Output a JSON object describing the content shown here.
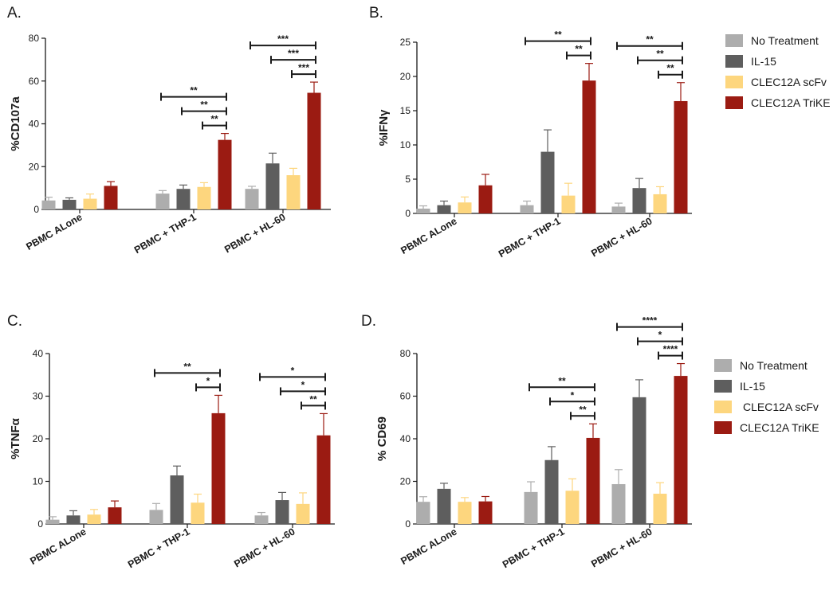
{
  "legend": {
    "entries": [
      {
        "name": "No Treatment",
        "color": "#adadad"
      },
      {
        "name": "IL-15",
        "color": "#5e5e5e"
      },
      {
        "name": "CLEC12A scFv",
        "color": "#fdd67e"
      },
      {
        "name": "CLEC12A TriKE",
        "color": "#9b1b12"
      }
    ]
  },
  "chart_data": [
    {
      "panel": "A.",
      "type": "bar",
      "ylabel": "%CD107a",
      "ylim": [
        0,
        80
      ],
      "yticks": [
        0,
        20,
        40,
        60,
        80
      ],
      "categories": [
        "PBMC ALone",
        "PBMC + THP-1",
        "PBMC + HL-60"
      ],
      "series": [
        {
          "name": "No Treatment",
          "color": "#adadad",
          "values": [
            4.2,
            7.4,
            9.6
          ],
          "errors": [
            1.5,
            1.4,
            1.2
          ]
        },
        {
          "name": "IL-15",
          "color": "#5e5e5e",
          "values": [
            4.5,
            9.6,
            21.5
          ],
          "errors": [
            0.9,
            1.8,
            4.8
          ]
        },
        {
          "name": "CLEC12A scFv",
          "color": "#fdd67e",
          "values": [
            5.0,
            10.5,
            16.0
          ],
          "errors": [
            2.2,
            2.0,
            3.2
          ]
        },
        {
          "name": "CLEC12A TriKE",
          "color": "#9b1b12",
          "values": [
            11.0,
            32.5,
            54.5
          ],
          "errors": [
            2.0,
            3.0,
            5.0
          ]
        }
      ],
      "significance": [
        {
          "category": 1,
          "from": 0,
          "to": 3,
          "label": "**"
        },
        {
          "category": 1,
          "from": 1,
          "to": 3,
          "label": "**"
        },
        {
          "category": 1,
          "from": 2,
          "to": 3,
          "label": "**"
        },
        {
          "category": 2,
          "from": 0,
          "to": 3,
          "label": "***"
        },
        {
          "category": 2,
          "from": 1,
          "to": 3,
          "label": "***"
        },
        {
          "category": 2,
          "from": 2,
          "to": 3,
          "label": "***"
        }
      ]
    },
    {
      "panel": "B.",
      "type": "bar",
      "ylabel": "%IFNγ",
      "ylim": [
        0,
        25
      ],
      "yticks": [
        0,
        5,
        10,
        15,
        20,
        25
      ],
      "categories": [
        "PBMC ALone",
        "PBMC + THP-1",
        "PBMC + HL-60"
      ],
      "series": [
        {
          "name": "No Treatment",
          "color": "#adadad",
          "values": [
            0.7,
            1.2,
            1.0
          ],
          "errors": [
            0.4,
            0.6,
            0.5
          ]
        },
        {
          "name": "IL-15",
          "color": "#5e5e5e",
          "values": [
            1.2,
            9.0,
            3.7
          ],
          "errors": [
            0.6,
            3.2,
            1.4
          ]
        },
        {
          "name": "CLEC12A scFv",
          "color": "#fdd67e",
          "values": [
            1.6,
            2.6,
            2.8
          ],
          "errors": [
            0.8,
            1.8,
            1.1
          ]
        },
        {
          "name": "CLEC12A TriKE",
          "color": "#9b1b12",
          "values": [
            4.1,
            19.4,
            16.4
          ],
          "errors": [
            1.6,
            2.5,
            2.7
          ]
        }
      ],
      "significance": [
        {
          "category": 1,
          "from": 0,
          "to": 3,
          "label": "**"
        },
        {
          "category": 1,
          "from": 2,
          "to": 3,
          "label": "**"
        },
        {
          "category": 2,
          "from": 0,
          "to": 3,
          "label": "**"
        },
        {
          "category": 2,
          "from": 1,
          "to": 3,
          "label": "**"
        },
        {
          "category": 2,
          "from": 2,
          "to": 3,
          "label": "**"
        }
      ]
    },
    {
      "panel": "C.",
      "type": "bar",
      "ylabel": "%TNFα",
      "ylim": [
        0,
        40
      ],
      "yticks": [
        0,
        10,
        20,
        30,
        40
      ],
      "categories": [
        "PBMC ALone",
        "PBMC + THP-1",
        "PBMC + HL-60"
      ],
      "series": [
        {
          "name": "No Treatment",
          "color": "#adadad",
          "values": [
            1.0,
            3.3,
            2.0
          ],
          "errors": [
            0.7,
            1.5,
            0.7
          ]
        },
        {
          "name": "IL-15",
          "color": "#5e5e5e",
          "values": [
            2.0,
            11.4,
            5.6
          ],
          "errors": [
            1.1,
            2.2,
            1.8
          ]
        },
        {
          "name": "CLEC12A scFv",
          "color": "#fdd67e",
          "values": [
            2.2,
            5.0,
            4.7
          ],
          "errors": [
            1.2,
            2.0,
            2.6
          ]
        },
        {
          "name": "CLEC12A TriKE",
          "color": "#9b1b12",
          "values": [
            3.9,
            26.0,
            20.8
          ],
          "errors": [
            1.5,
            4.2,
            5.1
          ]
        }
      ],
      "significance": [
        {
          "category": 1,
          "from": 0,
          "to": 3,
          "label": "**"
        },
        {
          "category": 1,
          "from": 2,
          "to": 3,
          "label": "*"
        },
        {
          "category": 2,
          "from": 0,
          "to": 3,
          "label": "*"
        },
        {
          "category": 2,
          "from": 1,
          "to": 3,
          "label": "*"
        },
        {
          "category": 2,
          "from": 2,
          "to": 3,
          "label": "**"
        }
      ]
    },
    {
      "panel": "D.",
      "type": "bar",
      "ylabel": "% CD69",
      "ylim": [
        0,
        80
      ],
      "yticks": [
        0,
        20,
        40,
        60,
        80
      ],
      "categories": [
        "PBMC ALone",
        "PBMC + THP-1",
        "PBMC + HL-60"
      ],
      "series": [
        {
          "name": "No Treatment",
          "color": "#adadad",
          "values": [
            10.4,
            15.0,
            18.7
          ],
          "errors": [
            2.4,
            4.8,
            6.8
          ]
        },
        {
          "name": "IL-15",
          "color": "#5e5e5e",
          "values": [
            16.5,
            30.0,
            59.5
          ],
          "errors": [
            2.6,
            6.3,
            8.2
          ]
        },
        {
          "name": "CLEC12A scFv",
          "color": "#fdd67e",
          "values": [
            10.4,
            15.6,
            14.2
          ],
          "errors": [
            2.0,
            5.6,
            5.2
          ]
        },
        {
          "name": "CLEC12A TriKE",
          "color": "#9b1b12",
          "values": [
            10.6,
            40.4,
            69.5
          ],
          "errors": [
            2.3,
            6.6,
            5.8
          ]
        }
      ],
      "significance": [
        {
          "category": 1,
          "from": 0,
          "to": 3,
          "label": "**"
        },
        {
          "category": 1,
          "from": 1,
          "to": 3,
          "label": "*"
        },
        {
          "category": 1,
          "from": 2,
          "to": 3,
          "label": "**"
        },
        {
          "category": 2,
          "from": 0,
          "to": 3,
          "label": "****"
        },
        {
          "category": 2,
          "from": 1,
          "to": 3,
          "label": "*"
        },
        {
          "category": 2,
          "from": 2,
          "to": 3,
          "label": "****"
        }
      ]
    }
  ]
}
